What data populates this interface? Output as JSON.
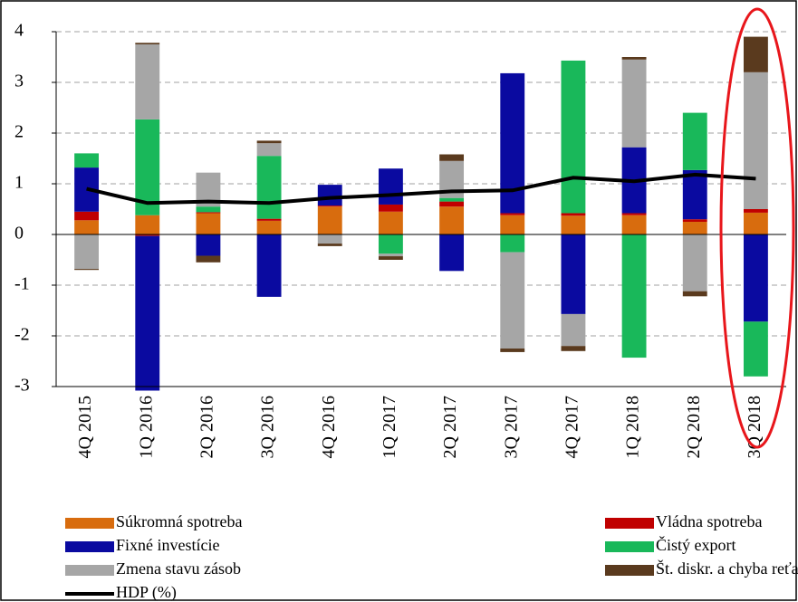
{
  "chart_data": {
    "type": "bar",
    "categories": [
      "4Q 2015",
      "1Q 2016",
      "2Q 2016",
      "3Q 2016",
      "4Q 2016",
      "1Q 2017",
      "2Q 2017",
      "3Q 2017",
      "4Q 2017",
      "1Q 2018",
      "2Q 2018",
      "3Q 2018"
    ],
    "series": [
      {
        "name": "Súkromná spotreba",
        "color": "#d86c0e",
        "values": [
          0.28,
          0.38,
          0.42,
          0.27,
          0.55,
          0.45,
          0.55,
          0.38,
          0.37,
          0.38,
          0.25,
          0.43
        ]
      },
      {
        "name": "Vládna spotreba",
        "color": "#c00000",
        "values": [
          0.17,
          -0.03,
          0.02,
          0.04,
          0.02,
          0.14,
          0.1,
          0.04,
          0.05,
          0.04,
          0.05,
          0.07
        ]
      },
      {
        "name": "Fixné investície",
        "color": "#0a0aa0",
        "values": [
          0.87,
          -3.05,
          -0.42,
          -1.23,
          0.41,
          0.71,
          -0.72,
          2.76,
          -1.57,
          1.3,
          0.97,
          -1.72
        ]
      },
      {
        "name": "Čistý export",
        "color": "#19b85a",
        "values": [
          0.28,
          1.89,
          0.11,
          1.24,
          0,
          -0.38,
          0.07,
          -0.35,
          3.01,
          -2.43,
          1.13,
          -1.08
        ]
      },
      {
        "name": "Zmena stavu zásob",
        "color": "#a6a6a6",
        "values": [
          -0.68,
          1.48,
          0.67,
          0.25,
          -0.18,
          -0.05,
          0.73,
          -1.9,
          -0.63,
          1.73,
          -1.12,
          2.7
        ]
      },
      {
        "name": "Št. diskr. a chyba reťazenia",
        "color": "#5a3a1e",
        "values": [
          -0.02,
          0.03,
          -0.13,
          0.05,
          -0.05,
          -0.07,
          0.13,
          -0.07,
          -0.1,
          0.05,
          -0.1,
          0.7
        ]
      }
    ],
    "line": {
      "name": "HDP (%)",
      "color": "#000000",
      "values": [
        0.9,
        0.62,
        0.65,
        0.62,
        0.72,
        0.78,
        0.85,
        0.87,
        1.12,
        1.05,
        1.18,
        1.1
      ]
    },
    "ylim": [
      -3,
      4
    ],
    "yticks": [
      -3,
      -2,
      -1,
      0,
      1,
      2,
      3,
      4
    ],
    "grid": true
  }
}
